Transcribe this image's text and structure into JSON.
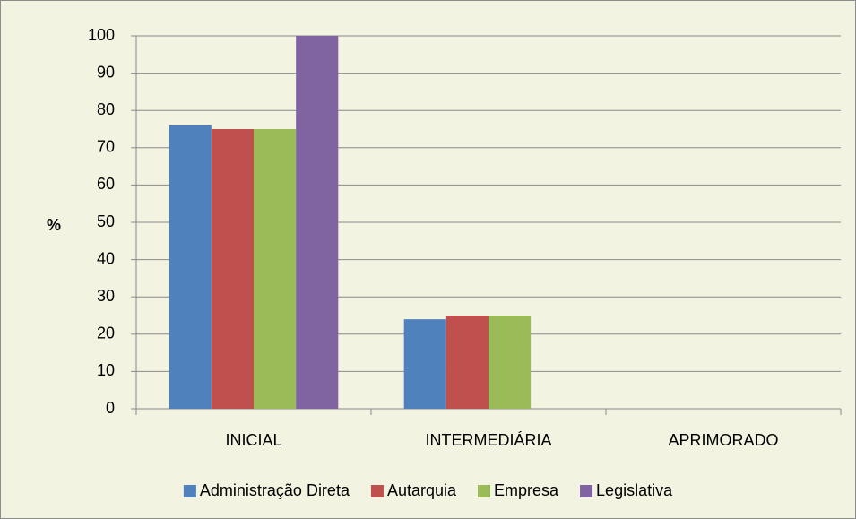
{
  "chart_data": {
    "type": "bar",
    "categories": [
      "INICIAL",
      "INTERMEDIÁRIA",
      "APRIMORADO"
    ],
    "y_label": "%",
    "series": [
      {
        "name": "Administração Direta",
        "color": "#4f81bd",
        "values": [
          76,
          24,
          0
        ]
      },
      {
        "name": "Autarquia",
        "color": "#c0504d",
        "values": [
          75,
          25,
          0
        ]
      },
      {
        "name": "Empresa",
        "color": "#9bbb59",
        "values": [
          75,
          25,
          0
        ]
      },
      {
        "name": "Legislativa",
        "color": "#8064a2",
        "values": [
          100,
          0,
          0
        ]
      }
    ],
    "ylim": [
      0,
      100
    ],
    "yticks": [
      0,
      10,
      20,
      30,
      40,
      50,
      60,
      70,
      80,
      90,
      100
    ],
    "grid": true,
    "legend": "bottom"
  }
}
